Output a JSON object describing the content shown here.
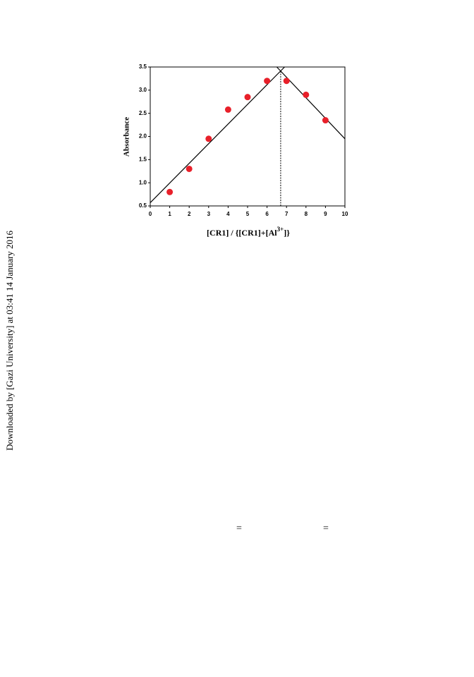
{
  "sidebar": {
    "text": "Downloaded by [Gazi University] at 03:41 14 January 2016"
  },
  "chart_data": {
    "type": "scatter",
    "ylabel": "Absorbance",
    "xlabel": [
      "[CR1] / {[CR1]+[Al",
      "3+",
      "]}"
    ],
    "xlim": [
      0,
      10
    ],
    "xticks": [
      0,
      1,
      2,
      3,
      4,
      5,
      6,
      7,
      8,
      9,
      10
    ],
    "ylim": [
      0.5,
      3.5
    ],
    "yticks": [
      0.5,
      {
        "value": 1,
        "label": "1.0"
      },
      1.5,
      {
        "value": 2,
        "label": "2.0"
      },
      2.5,
      {
        "value": 3,
        "label": "3.0"
      },
      3.5
    ],
    "series": [
      {
        "color": "#e8202a",
        "x": [
          1,
          2,
          3,
          4,
          5,
          6,
          7,
          8,
          9
        ],
        "values": [
          0.8,
          1.3,
          1.95,
          2.58,
          2.85,
          3.2,
          3.2,
          2.9,
          2.35
        ]
      }
    ],
    "fit_lines": [
      {
        "color": "#000000",
        "x": [
          0,
          6.9
        ],
        "values": [
          0.57,
          3.5
        ]
      },
      {
        "color": "#000000",
        "x": [
          6.5,
          10
        ],
        "values": [
          3.5,
          1.95
        ]
      }
    ],
    "guide": {
      "x": [
        6.7,
        6.7
      ],
      "values": [
        0.5,
        3.42
      ]
    }
  },
  "equations": [
    "=",
    "="
  ]
}
